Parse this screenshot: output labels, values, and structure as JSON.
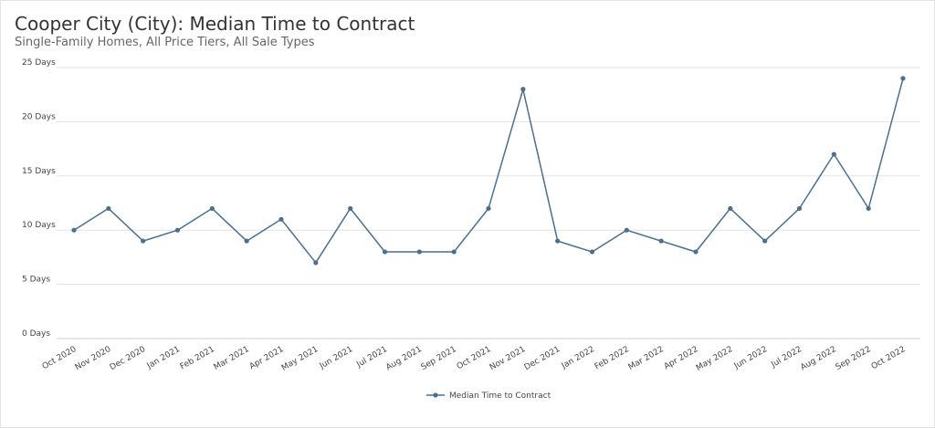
{
  "title": "Cooper City (City): Median Time to Contract",
  "subtitle": "Single-Family Homes, All Price Tiers, All Sale Types",
  "colors": {
    "series": "#4d6f8e",
    "grid": "#e3e3e3",
    "title": "#333333",
    "subtitle": "#666666"
  },
  "chart_data": {
    "type": "line",
    "title": "Cooper City (City): Median Time to Contract",
    "subtitle": "Single-Family Homes, All Price Tiers, All Sale Types",
    "xlabel": "",
    "ylabel": "",
    "grid": true,
    "legend_position": "bottom-center",
    "ylim": [
      0,
      25
    ],
    "y_ticks": [
      0,
      5,
      10,
      15,
      20,
      25
    ],
    "y_tick_labels": [
      "0 Days",
      "5 Days",
      "10 Days",
      "15 Days",
      "20 Days",
      "25 Days"
    ],
    "categories": [
      "Oct 2020",
      "Nov 2020",
      "Dec 2020",
      "Jan 2021",
      "Feb 2021",
      "Mar 2021",
      "Apr 2021",
      "May 2021",
      "Jun 2021",
      "Jul 2021",
      "Aug 2021",
      "Sep 2021",
      "Oct 2021",
      "Nov 2021",
      "Dec 2021",
      "Jan 2022",
      "Feb 2022",
      "Mar 2022",
      "Apr 2022",
      "May 2022",
      "Jun 2022",
      "Jul 2022",
      "Aug 2022",
      "Sep 2022",
      "Oct 2022"
    ],
    "series": [
      {
        "name": "Median Time to Contract",
        "values": [
          10,
          12,
          9,
          10,
          12,
          9,
          11,
          7,
          12,
          8,
          8,
          8,
          12,
          23,
          9,
          8,
          10,
          9,
          8,
          12,
          9,
          12,
          17,
          12,
          24
        ]
      }
    ]
  }
}
